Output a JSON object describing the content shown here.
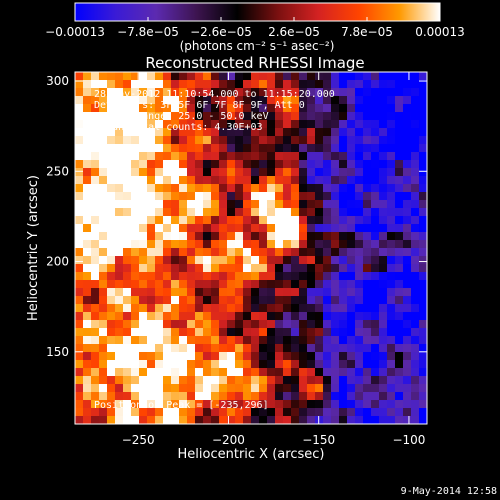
{
  "chart_data": {
    "type": "heatmap",
    "title": "Reconstructed RHESSI Image",
    "xlabel": "Heliocentric X (arcsec)",
    "ylabel": "Heliocentric Y (arcsec)",
    "xlim": [
      -285,
      -90
    ],
    "ylim": [
      110,
      305
    ],
    "x_ticks": [
      -250,
      -200,
      -150,
      -100
    ],
    "x_tick_labels": [
      "−250",
      "−200",
      "−150",
      "−100"
    ],
    "y_ticks": [
      150,
      200,
      250,
      300
    ],
    "y_tick_labels": [
      "150",
      "200",
      "250",
      "300"
    ],
    "colorbar": {
      "min": -0.00013,
      "max": 0.00013,
      "tick_values": [
        -0.00013,
        -7.8e-05,
        -2.6e-05,
        2.6e-05,
        7.8e-05,
        0.00013
      ],
      "tick_labels": [
        "−0.00013",
        "−7.8e−05",
        "−2.6e−05",
        "2.6e−05",
        "7.8e−05",
        "0.00013"
      ],
      "unit_label": "(photons cm⁻² s⁻¹ asec⁻²)",
      "colormap": [
        "#0000ff",
        "#3a1bd6",
        "#5c2ab0",
        "#3d1450",
        "#000000",
        "#7a1010",
        "#d42222",
        "#ff4400",
        "#ff9900",
        "#ffffff"
      ]
    },
    "annotations": [
      "28-May-2012 11:10:54.000 to 11:15:20.000",
      "Detectors: 3F 5F 6F 7F 8F 9F, Att 0",
      "Energy Range: 25.0 - 50.0 keV",
      "Clean     Total counts: 4.30E+03"
    ],
    "peak_label": "Position of Peak = [-235,296]",
    "peak_position": [
      -235,
      296
    ],
    "timestamp": "9-May-2014 12:58"
  }
}
